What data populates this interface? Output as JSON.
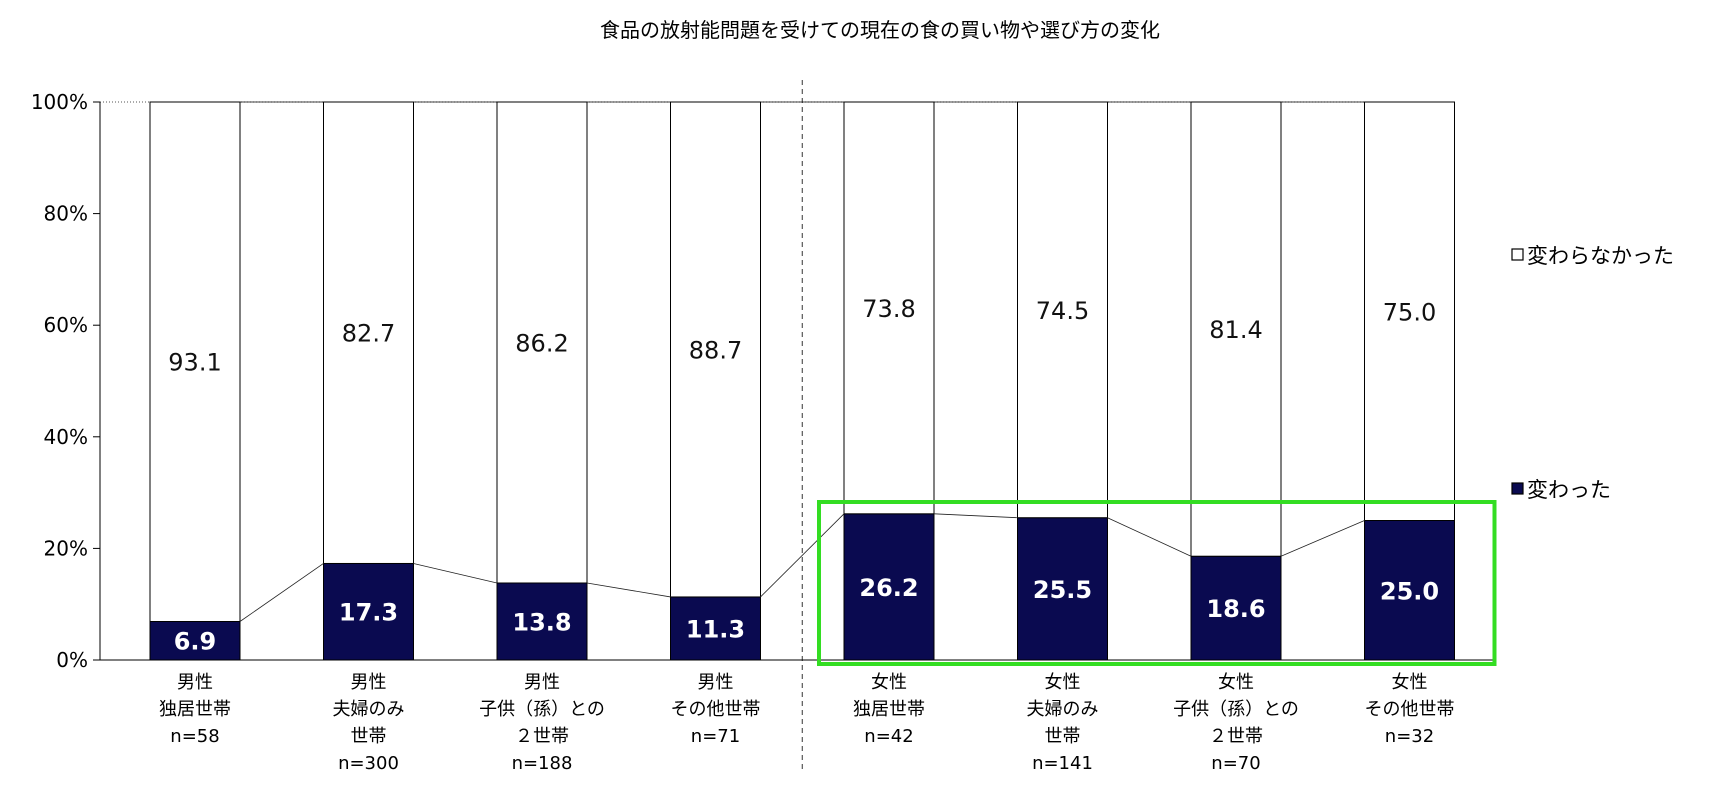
{
  "chart_data": {
    "type": "bar",
    "stacked": true,
    "percent": true,
    "title": "食品の放射能問題を受けての現在の食の買い物や選び方の変化",
    "categories": [
      [
        "男性",
        "独居世帯",
        "n=58"
      ],
      [
        "男性",
        "夫婦のみ",
        "世帯",
        "n=300"
      ],
      [
        "男性",
        "子供（孫）との",
        "２世帯",
        "n=188"
      ],
      [
        "男性",
        "その他世帯",
        "n=71"
      ],
      [
        "女性",
        "独居世帯",
        "n=42"
      ],
      [
        "女性",
        "夫婦のみ",
        "世帯",
        "n=141"
      ],
      [
        "女性",
        "子供（孫）との",
        "２世帯",
        "n=70"
      ],
      [
        "女性",
        "その他世帯",
        "n=32"
      ]
    ],
    "series": [
      {
        "name": "変わった",
        "color": "#0a0a50",
        "values": [
          6.9,
          17.3,
          13.8,
          11.3,
          26.2,
          25.5,
          18.6,
          25.0
        ],
        "labels": [
          "6.9",
          "17.3",
          "13.8",
          "11.3",
          "26.2",
          "25.5",
          "18.6",
          "25.0"
        ]
      },
      {
        "name": "変わらなかった",
        "color": "#ffffff",
        "values": [
          93.1,
          82.7,
          86.2,
          88.7,
          73.8,
          74.5,
          81.4,
          75.0
        ],
        "labels": [
          "93.1",
          "82.7",
          "86.2",
          "88.7",
          "73.8",
          "74.5",
          "81.4",
          "75.0"
        ]
      }
    ],
    "yticks": [
      "0%",
      "20%",
      "40%",
      "60%",
      "80%",
      "100%"
    ],
    "ylim": [
      0,
      100
    ],
    "legend_position": "right",
    "highlight": {
      "from_category": 4,
      "to_category": 7,
      "color": "#33dd22"
    },
    "divider_after_category": 3
  }
}
